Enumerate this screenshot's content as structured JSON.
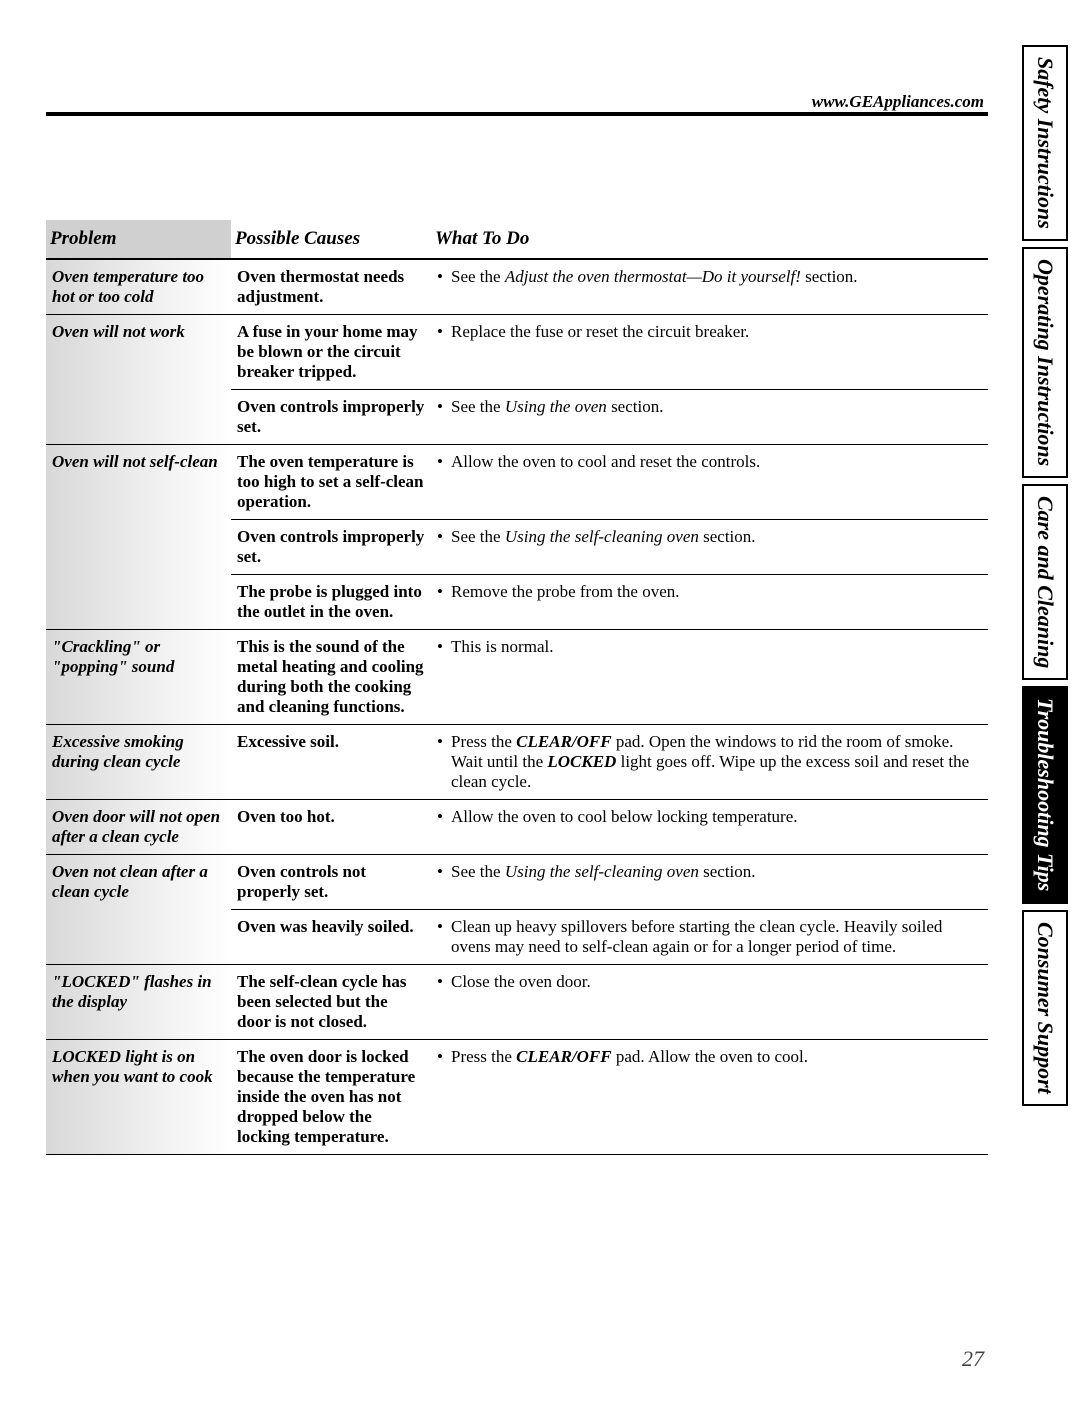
{
  "url": "www.GEAppliances.com",
  "pageNumber": "27",
  "sideTabs": [
    {
      "label": "Safety Instructions",
      "active": false
    },
    {
      "label": "Operating Instructions",
      "active": false
    },
    {
      "label": "Care and Cleaning",
      "active": false
    },
    {
      "label": "Troubleshooting Tips",
      "active": true
    },
    {
      "label": "Consumer Support",
      "active": false
    }
  ],
  "headers": {
    "problem": "Problem",
    "causes": "Possible Causes",
    "todo": "What To Do"
  },
  "rows": [
    {
      "problem": "Oven temperature too hot or too cold",
      "causes": [
        {
          "cause": "Oven thermostat needs adjustment.",
          "todo": "• See the <em class='it'>Adjust the oven thermostat—Do it yourself!</em> section."
        }
      ]
    },
    {
      "problem": "Oven will not work",
      "causes": [
        {
          "cause": "A fuse in your home may be blown or the circuit breaker tripped.",
          "todo": "• Replace the fuse or reset the circuit breaker."
        },
        {
          "cause": "Oven controls improperly set.",
          "todo": "• See the <em class='it'>Using the oven</em> section."
        }
      ]
    },
    {
      "problem": "Oven will not self-clean",
      "causes": [
        {
          "cause": "The oven temperature is too high to set a self-clean operation.",
          "todo": "• Allow the oven to cool and reset the controls."
        },
        {
          "cause": "Oven controls improperly set.",
          "todo": "• See the <em class='it'>Using the self-cleaning oven</em> section."
        },
        {
          "cause": "The probe is plugged into the outlet in the oven.",
          "todo": "• Remove the probe from the oven."
        }
      ]
    },
    {
      "problem": "\"Crackling\" or \"popping\" sound",
      "causes": [
        {
          "cause": "This is the sound of the metal heating and cooling during both the cooking and cleaning functions.",
          "todo": "• This is normal."
        }
      ]
    },
    {
      "problem": "Excessive smoking during clean cycle",
      "causes": [
        {
          "cause": "Excessive soil.",
          "todo": "• Press the <strong class='bi'>CLEAR/OFF</strong> pad. Open the windows to rid the room of smoke. Wait until the <strong class='bi'>LOCKED</strong> light goes off. Wipe up the excess soil and reset the clean cycle."
        }
      ]
    },
    {
      "problem": "Oven door will not open after a clean cycle",
      "causes": [
        {
          "cause": "Oven too hot.",
          "todo": "• Allow the oven to cool below locking temperature."
        }
      ]
    },
    {
      "problem": "Oven not clean after a clean cycle",
      "causes": [
        {
          "cause": "Oven controls not properly set.",
          "todo": "• See the <em class='it'>Using the self-cleaning oven</em> section."
        },
        {
          "cause": "Oven was heavily soiled.",
          "todo": "• Clean up heavy spillovers before starting the clean cycle. Heavily soiled ovens may need to self-clean again or for a longer period of time."
        }
      ]
    },
    {
      "problem": "\"LOCKED\" flashes in the display",
      "causes": [
        {
          "cause": "The self-clean cycle has been selected but the door is not closed.",
          "todo": "• Close the oven door."
        }
      ]
    },
    {
      "problem": "LOCKED light is on when you want to cook",
      "causes": [
        {
          "cause": "The oven door is locked because the temperature inside the oven has not dropped below the locking temperature.",
          "todo": "• Press the <strong class='bi'>CLEAR/OFF</strong> pad. Allow the oven to cool."
        }
      ]
    }
  ]
}
